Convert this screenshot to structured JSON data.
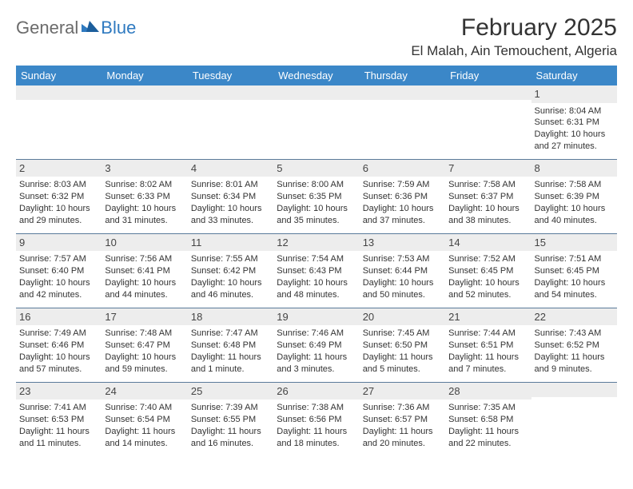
{
  "logo": {
    "text1": "General",
    "text2": "Blue"
  },
  "header": {
    "month_title": "February 2025",
    "location": "El Malah, Ain Temouchent, Algeria"
  },
  "colors": {
    "header_bg": "#3b87c8",
    "header_fg": "#ffffff",
    "daynum_bg": "#ededed",
    "row_border": "#5a7a9a",
    "logo_gray": "#6b6b6b",
    "logo_blue": "#2f7ac0"
  },
  "day_headers": [
    "Sunday",
    "Monday",
    "Tuesday",
    "Wednesday",
    "Thursday",
    "Friday",
    "Saturday"
  ],
  "weeks": [
    [
      {
        "n": "",
        "lines": []
      },
      {
        "n": "",
        "lines": []
      },
      {
        "n": "",
        "lines": []
      },
      {
        "n": "",
        "lines": []
      },
      {
        "n": "",
        "lines": []
      },
      {
        "n": "",
        "lines": []
      },
      {
        "n": "1",
        "lines": [
          "Sunrise: 8:04 AM",
          "Sunset: 6:31 PM",
          "Daylight: 10 hours and 27 minutes."
        ]
      }
    ],
    [
      {
        "n": "2",
        "lines": [
          "Sunrise: 8:03 AM",
          "Sunset: 6:32 PM",
          "Daylight: 10 hours and 29 minutes."
        ]
      },
      {
        "n": "3",
        "lines": [
          "Sunrise: 8:02 AM",
          "Sunset: 6:33 PM",
          "Daylight: 10 hours and 31 minutes."
        ]
      },
      {
        "n": "4",
        "lines": [
          "Sunrise: 8:01 AM",
          "Sunset: 6:34 PM",
          "Daylight: 10 hours and 33 minutes."
        ]
      },
      {
        "n": "5",
        "lines": [
          "Sunrise: 8:00 AM",
          "Sunset: 6:35 PM",
          "Daylight: 10 hours and 35 minutes."
        ]
      },
      {
        "n": "6",
        "lines": [
          "Sunrise: 7:59 AM",
          "Sunset: 6:36 PM",
          "Daylight: 10 hours and 37 minutes."
        ]
      },
      {
        "n": "7",
        "lines": [
          "Sunrise: 7:58 AM",
          "Sunset: 6:37 PM",
          "Daylight: 10 hours and 38 minutes."
        ]
      },
      {
        "n": "8",
        "lines": [
          "Sunrise: 7:58 AM",
          "Sunset: 6:39 PM",
          "Daylight: 10 hours and 40 minutes."
        ]
      }
    ],
    [
      {
        "n": "9",
        "lines": [
          "Sunrise: 7:57 AM",
          "Sunset: 6:40 PM",
          "Daylight: 10 hours and 42 minutes."
        ]
      },
      {
        "n": "10",
        "lines": [
          "Sunrise: 7:56 AM",
          "Sunset: 6:41 PM",
          "Daylight: 10 hours and 44 minutes."
        ]
      },
      {
        "n": "11",
        "lines": [
          "Sunrise: 7:55 AM",
          "Sunset: 6:42 PM",
          "Daylight: 10 hours and 46 minutes."
        ]
      },
      {
        "n": "12",
        "lines": [
          "Sunrise: 7:54 AM",
          "Sunset: 6:43 PM",
          "Daylight: 10 hours and 48 minutes."
        ]
      },
      {
        "n": "13",
        "lines": [
          "Sunrise: 7:53 AM",
          "Sunset: 6:44 PM",
          "Daylight: 10 hours and 50 minutes."
        ]
      },
      {
        "n": "14",
        "lines": [
          "Sunrise: 7:52 AM",
          "Sunset: 6:45 PM",
          "Daylight: 10 hours and 52 minutes."
        ]
      },
      {
        "n": "15",
        "lines": [
          "Sunrise: 7:51 AM",
          "Sunset: 6:45 PM",
          "Daylight: 10 hours and 54 minutes."
        ]
      }
    ],
    [
      {
        "n": "16",
        "lines": [
          "Sunrise: 7:49 AM",
          "Sunset: 6:46 PM",
          "Daylight: 10 hours and 57 minutes."
        ]
      },
      {
        "n": "17",
        "lines": [
          "Sunrise: 7:48 AM",
          "Sunset: 6:47 PM",
          "Daylight: 10 hours and 59 minutes."
        ]
      },
      {
        "n": "18",
        "lines": [
          "Sunrise: 7:47 AM",
          "Sunset: 6:48 PM",
          "Daylight: 11 hours and 1 minute."
        ]
      },
      {
        "n": "19",
        "lines": [
          "Sunrise: 7:46 AM",
          "Sunset: 6:49 PM",
          "Daylight: 11 hours and 3 minutes."
        ]
      },
      {
        "n": "20",
        "lines": [
          "Sunrise: 7:45 AM",
          "Sunset: 6:50 PM",
          "Daylight: 11 hours and 5 minutes."
        ]
      },
      {
        "n": "21",
        "lines": [
          "Sunrise: 7:44 AM",
          "Sunset: 6:51 PM",
          "Daylight: 11 hours and 7 minutes."
        ]
      },
      {
        "n": "22",
        "lines": [
          "Sunrise: 7:43 AM",
          "Sunset: 6:52 PM",
          "Daylight: 11 hours and 9 minutes."
        ]
      }
    ],
    [
      {
        "n": "23",
        "lines": [
          "Sunrise: 7:41 AM",
          "Sunset: 6:53 PM",
          "Daylight: 11 hours and 11 minutes."
        ]
      },
      {
        "n": "24",
        "lines": [
          "Sunrise: 7:40 AM",
          "Sunset: 6:54 PM",
          "Daylight: 11 hours and 14 minutes."
        ]
      },
      {
        "n": "25",
        "lines": [
          "Sunrise: 7:39 AM",
          "Sunset: 6:55 PM",
          "Daylight: 11 hours and 16 minutes."
        ]
      },
      {
        "n": "26",
        "lines": [
          "Sunrise: 7:38 AM",
          "Sunset: 6:56 PM",
          "Daylight: 11 hours and 18 minutes."
        ]
      },
      {
        "n": "27",
        "lines": [
          "Sunrise: 7:36 AM",
          "Sunset: 6:57 PM",
          "Daylight: 11 hours and 20 minutes."
        ]
      },
      {
        "n": "28",
        "lines": [
          "Sunrise: 7:35 AM",
          "Sunset: 6:58 PM",
          "Daylight: 11 hours and 22 minutes."
        ]
      },
      {
        "n": "",
        "lines": []
      }
    ]
  ]
}
